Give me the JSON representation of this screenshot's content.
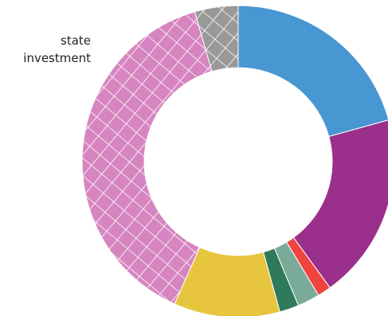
{
  "chart_data": {
    "type": "pie",
    "variant": "donut",
    "title": "",
    "annotations": [
      {
        "lines": [
          "state",
          "investment"
        ],
        "placement": "top-left"
      }
    ],
    "slices": [
      {
        "value": 20.7,
        "color": "#4896d2",
        "pattern": "none"
      },
      {
        "value": 19.3,
        "color": "#9b2f8c",
        "pattern": "none"
      },
      {
        "value": 1.4,
        "color": "#ee433e",
        "pattern": "none"
      },
      {
        "value": 2.3,
        "color": "#7aab9a",
        "pattern": "none"
      },
      {
        "value": 2.0,
        "color": "#2e7a5b",
        "pattern": "none"
      },
      {
        "value": 11.0,
        "color": "#e8c53f",
        "pattern": "none"
      },
      {
        "value": 38.8,
        "color": "#d685c0",
        "pattern": "crosshatch"
      },
      {
        "value": 4.5,
        "color": "#999999",
        "pattern": "crosshatch"
      }
    ]
  }
}
